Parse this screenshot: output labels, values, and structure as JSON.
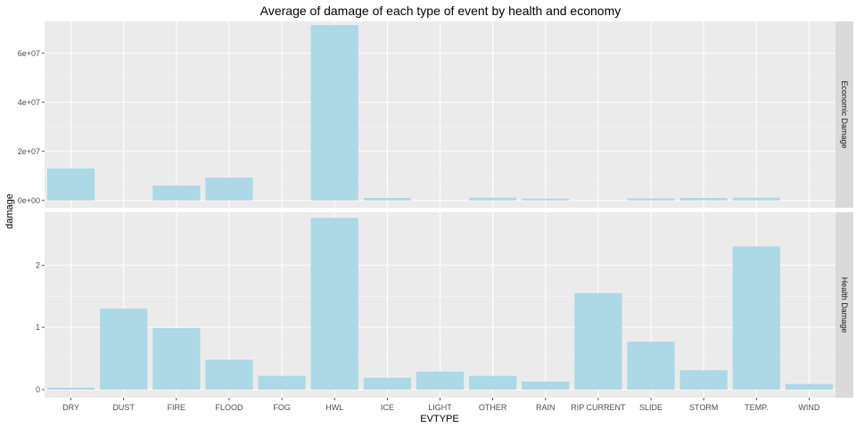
{
  "chart_data": {
    "type": "bar",
    "title": "Average of damage of each type of event by health and economy",
    "xlabel": "EVTYPE",
    "ylabel": "damage",
    "categories": [
      "DRY",
      "DUST",
      "FIRE",
      "FLOOD",
      "FOG",
      "HWL",
      "ICE",
      "LIGHT",
      "OTHER",
      "RAIN",
      "RIP CURRENT",
      "SLIDE",
      "STORM",
      "TEMP.",
      "WIND"
    ],
    "grid": true,
    "bar_color": "#add8e6",
    "panel_background": "#ebebeb",
    "strip_background": "#d9d9d9",
    "facets": [
      {
        "strip_label": "Economic Damage",
        "ylim": [
          -3000000,
          73000000
        ],
        "yticks": [
          0,
          20000000,
          40000000,
          60000000
        ],
        "ytick_labels": [
          "0e+00",
          "2e+07",
          "4e+07",
          "6e+07"
        ],
        "values": [
          13000000,
          0,
          6000000,
          9300000,
          0,
          71500000,
          1000000,
          0,
          1100000,
          700000,
          0,
          800000,
          1000000,
          1100000,
          0
        ]
      },
      {
        "strip_label": "Health Damage",
        "ylim": [
          -0.13,
          2.85
        ],
        "yticks": [
          0,
          1,
          2
        ],
        "ytick_labels": [
          "0",
          "1",
          "2"
        ],
        "values": [
          0.03,
          1.3,
          0.99,
          0.48,
          0.22,
          2.76,
          0.19,
          0.29,
          0.22,
          0.13,
          1.55,
          0.77,
          0.31,
          2.3,
          0.09
        ]
      }
    ]
  }
}
